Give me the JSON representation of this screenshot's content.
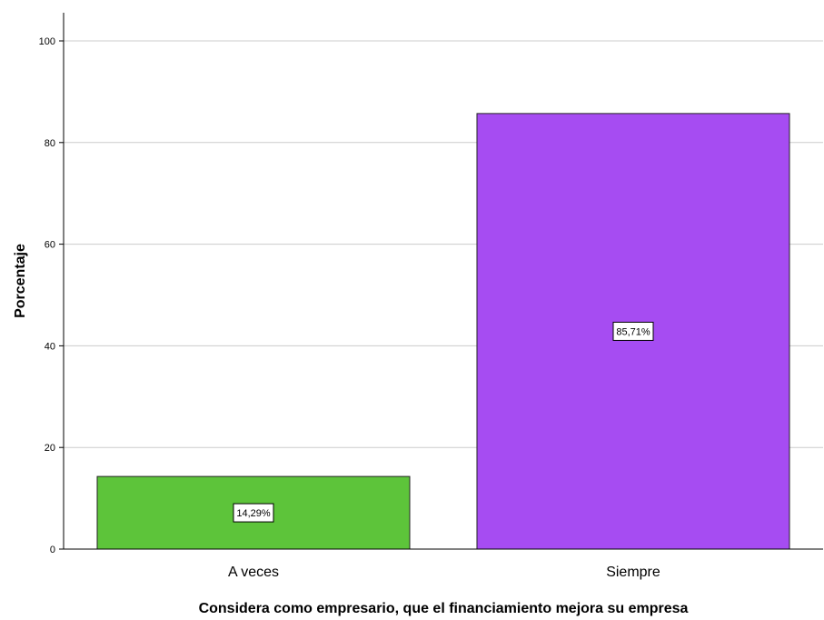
{
  "chart_data": {
    "type": "bar",
    "title": "",
    "xlabel": "Considera como empresario, que el financiamiento mejora su empresa",
    "ylabel": "Porcentaje",
    "categories": [
      "A veces",
      "Siempre"
    ],
    "values": [
      14.29,
      85.71
    ],
    "data_labels": [
      "14,29%",
      "85,71%"
    ],
    "colors": [
      "#5dc43a",
      "#a64cf2"
    ],
    "ylim": [
      0,
      100
    ],
    "yticks": [
      "0",
      "20",
      "40",
      "60",
      "80",
      "100"
    ],
    "grid": true,
    "legend": "none"
  }
}
